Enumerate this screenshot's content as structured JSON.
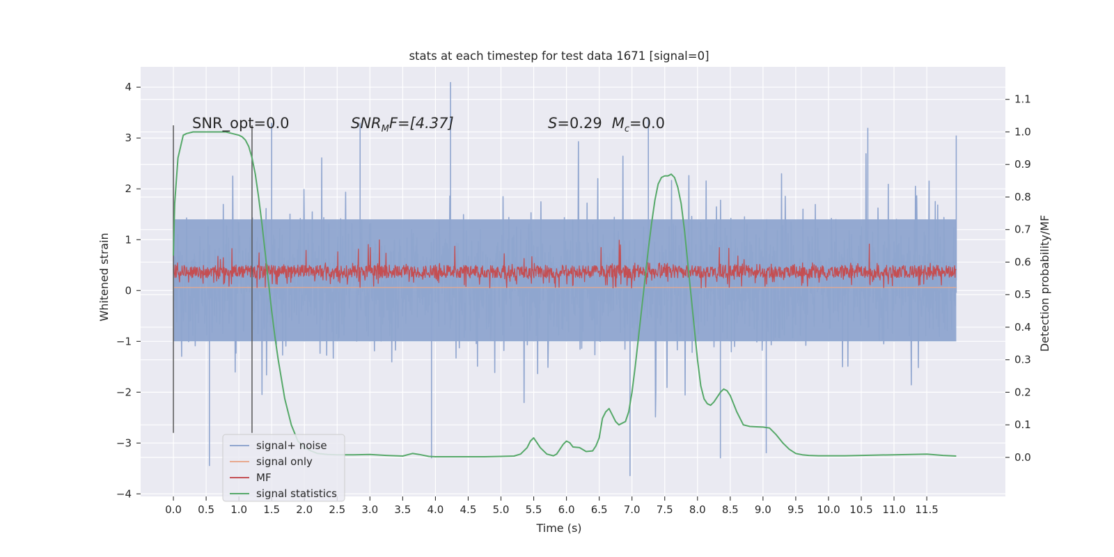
{
  "chart_data": {
    "type": "line",
    "title": "stats at each timestep for test data 1671 [signal=0]",
    "xlabel": "Time (s)",
    "ylabel": "Whitened strain",
    "y2label": "Detection probability/MF",
    "xlim": [
      -0.5,
      12.7
    ],
    "ylim": [
      -4.05,
      4.4
    ],
    "y2lim": [
      -0.12,
      1.2
    ],
    "x_ticks": [
      0.0,
      0.5,
      1.0,
      1.5,
      2.0,
      2.5,
      3.0,
      3.5,
      4.0,
      4.5,
      5.0,
      5.5,
      6.0,
      6.5,
      7.0,
      7.5,
      8.0,
      8.5,
      9.0,
      9.5,
      10.0,
      10.5,
      11.0,
      11.5
    ],
    "x_tick_labels": [
      "0.0",
      "0.5",
      "1.0",
      "1.5",
      "2.0",
      "2.5",
      "3.0",
      "3.5",
      "4.0",
      "4.5",
      "5.0",
      "5.5",
      "6.0",
      "6.5",
      "7.0",
      "7.5",
      "8.0",
      "8.5",
      "9.0",
      "9.5",
      "10.0",
      "10.5",
      "11.0",
      "11.5"
    ],
    "y_ticks": [
      -4,
      -3,
      -2,
      -1,
      0,
      1,
      2,
      3,
      4
    ],
    "y_tick_labels": [
      "−4",
      "−3",
      "−2",
      "−1",
      "0",
      "1",
      "2",
      "3",
      "4"
    ],
    "y2_ticks": [
      0.0,
      0.1,
      0.2,
      0.3,
      0.4,
      0.5,
      0.6,
      0.7,
      0.8,
      0.9,
      1.0,
      1.1
    ],
    "y2_tick_labels": [
      "0.0",
      "0.1",
      "0.2",
      "0.3",
      "0.4",
      "0.5",
      "0.6",
      "0.7",
      "0.8",
      "0.9",
      "1.0",
      "1.1"
    ],
    "grid": true,
    "legend_position": "lower-left",
    "colors": {
      "background": "#eaeaf2",
      "grid": "#ffffff",
      "signal_noise": "#8fa5cf",
      "signal_only": "#e8a98e",
      "mf": "#c44e52",
      "statistics": "#55a868",
      "window_lines": "#555555"
    },
    "annotations": {
      "snr_opt": "SNR_opt=0.0",
      "snr_mf_base": "SNR",
      "snr_mf_sub": "M",
      "snr_mf_rest": "F=[4.37]",
      "s_label": "S",
      "s_value": "=0.29",
      "mc_base": "M",
      "mc_sub": "c",
      "mc_value": "=0.0"
    },
    "window_markers": {
      "x": [
        0.0,
        1.2
      ],
      "y_range": [
        -2.8,
        3.25
      ]
    },
    "signal_noise_envelope": {
      "x_range": [
        0.0,
        11.95
      ],
      "dense_band": [
        -1.0,
        1.4
      ],
      "typical_peak": [
        -2.2,
        2.6
      ],
      "max_peak": 4.1,
      "min_peak": -3.65
    },
    "mf_envelope": {
      "x_range": [
        0.0,
        11.95
      ],
      "band": [
        0.0,
        0.6
      ],
      "max_peak": 1.0
    },
    "series": [
      {
        "name": "signal+ noise",
        "color": "#8fa5cf"
      },
      {
        "name": "signal only",
        "color": "#e8a98e"
      },
      {
        "name": "MF",
        "color": "#c44e52"
      },
      {
        "name": "signal statistics",
        "color": "#55a868",
        "x": [
          0.0,
          0.02,
          0.07,
          0.15,
          0.2,
          0.3,
          0.5,
          0.7,
          0.8,
          0.9,
          1.0,
          1.05,
          1.1,
          1.15,
          1.2,
          1.25,
          1.3,
          1.35,
          1.4,
          1.45,
          1.5,
          1.55,
          1.6,
          1.7,
          1.8,
          1.9,
          2.0,
          2.1,
          2.2,
          2.35,
          2.5,
          2.75,
          3.0,
          3.25,
          3.5,
          3.65,
          3.75,
          3.9,
          4.0,
          4.25,
          4.5,
          4.75,
          5.0,
          5.2,
          5.3,
          5.4,
          5.45,
          5.5,
          5.55,
          5.6,
          5.7,
          5.8,
          5.85,
          5.95,
          6.0,
          6.05,
          6.1,
          6.2,
          6.3,
          6.4,
          6.45,
          6.5,
          6.55,
          6.6,
          6.65,
          6.7,
          6.75,
          6.8,
          6.85,
          6.9,
          6.95,
          7.0,
          7.05,
          7.1,
          7.15,
          7.2,
          7.25,
          7.3,
          7.35,
          7.4,
          7.45,
          7.5,
          7.55,
          7.6,
          7.65,
          7.7,
          7.75,
          7.8,
          7.85,
          7.9,
          7.95,
          8.0,
          8.05,
          8.1,
          8.15,
          8.2,
          8.25,
          8.3,
          8.35,
          8.4,
          8.45,
          8.5,
          8.55,
          8.6,
          8.65,
          8.7,
          8.8,
          8.9,
          9.0,
          9.1,
          9.2,
          9.3,
          9.4,
          9.5,
          9.6,
          9.7,
          9.85,
          10.0,
          10.25,
          10.5,
          10.75,
          11.0,
          11.25,
          11.5,
          11.75,
          11.95
        ],
        "y": [
          0.62,
          0.78,
          0.92,
          0.99,
          0.995,
          1.0,
          1.0,
          1.0,
          1.0,
          0.995,
          0.99,
          0.985,
          0.975,
          0.955,
          0.92,
          0.87,
          0.8,
          0.72,
          0.63,
          0.54,
          0.45,
          0.37,
          0.3,
          0.18,
          0.1,
          0.05,
          0.03,
          0.02,
          0.012,
          0.009,
          0.008,
          0.008,
          0.009,
          0.006,
          0.004,
          0.012,
          0.009,
          0.003,
          0.002,
          0.002,
          0.002,
          0.002,
          0.003,
          0.004,
          0.01,
          0.03,
          0.05,
          0.06,
          0.045,
          0.03,
          0.01,
          0.005,
          0.01,
          0.04,
          0.05,
          0.045,
          0.032,
          0.03,
          0.018,
          0.02,
          0.035,
          0.06,
          0.12,
          0.14,
          0.15,
          0.13,
          0.11,
          0.1,
          0.105,
          0.11,
          0.14,
          0.2,
          0.28,
          0.37,
          0.46,
          0.55,
          0.64,
          0.72,
          0.79,
          0.84,
          0.86,
          0.865,
          0.865,
          0.87,
          0.86,
          0.83,
          0.78,
          0.7,
          0.6,
          0.5,
          0.4,
          0.3,
          0.22,
          0.18,
          0.165,
          0.16,
          0.17,
          0.185,
          0.2,
          0.21,
          0.205,
          0.19,
          0.165,
          0.14,
          0.12,
          0.1,
          0.095,
          0.094,
          0.093,
          0.09,
          0.07,
          0.045,
          0.025,
          0.012,
          0.008,
          0.006,
          0.005,
          0.005,
          0.005,
          0.006,
          0.007,
          0.008,
          0.009,
          0.01,
          0.006,
          0.004
        ]
      }
    ]
  }
}
